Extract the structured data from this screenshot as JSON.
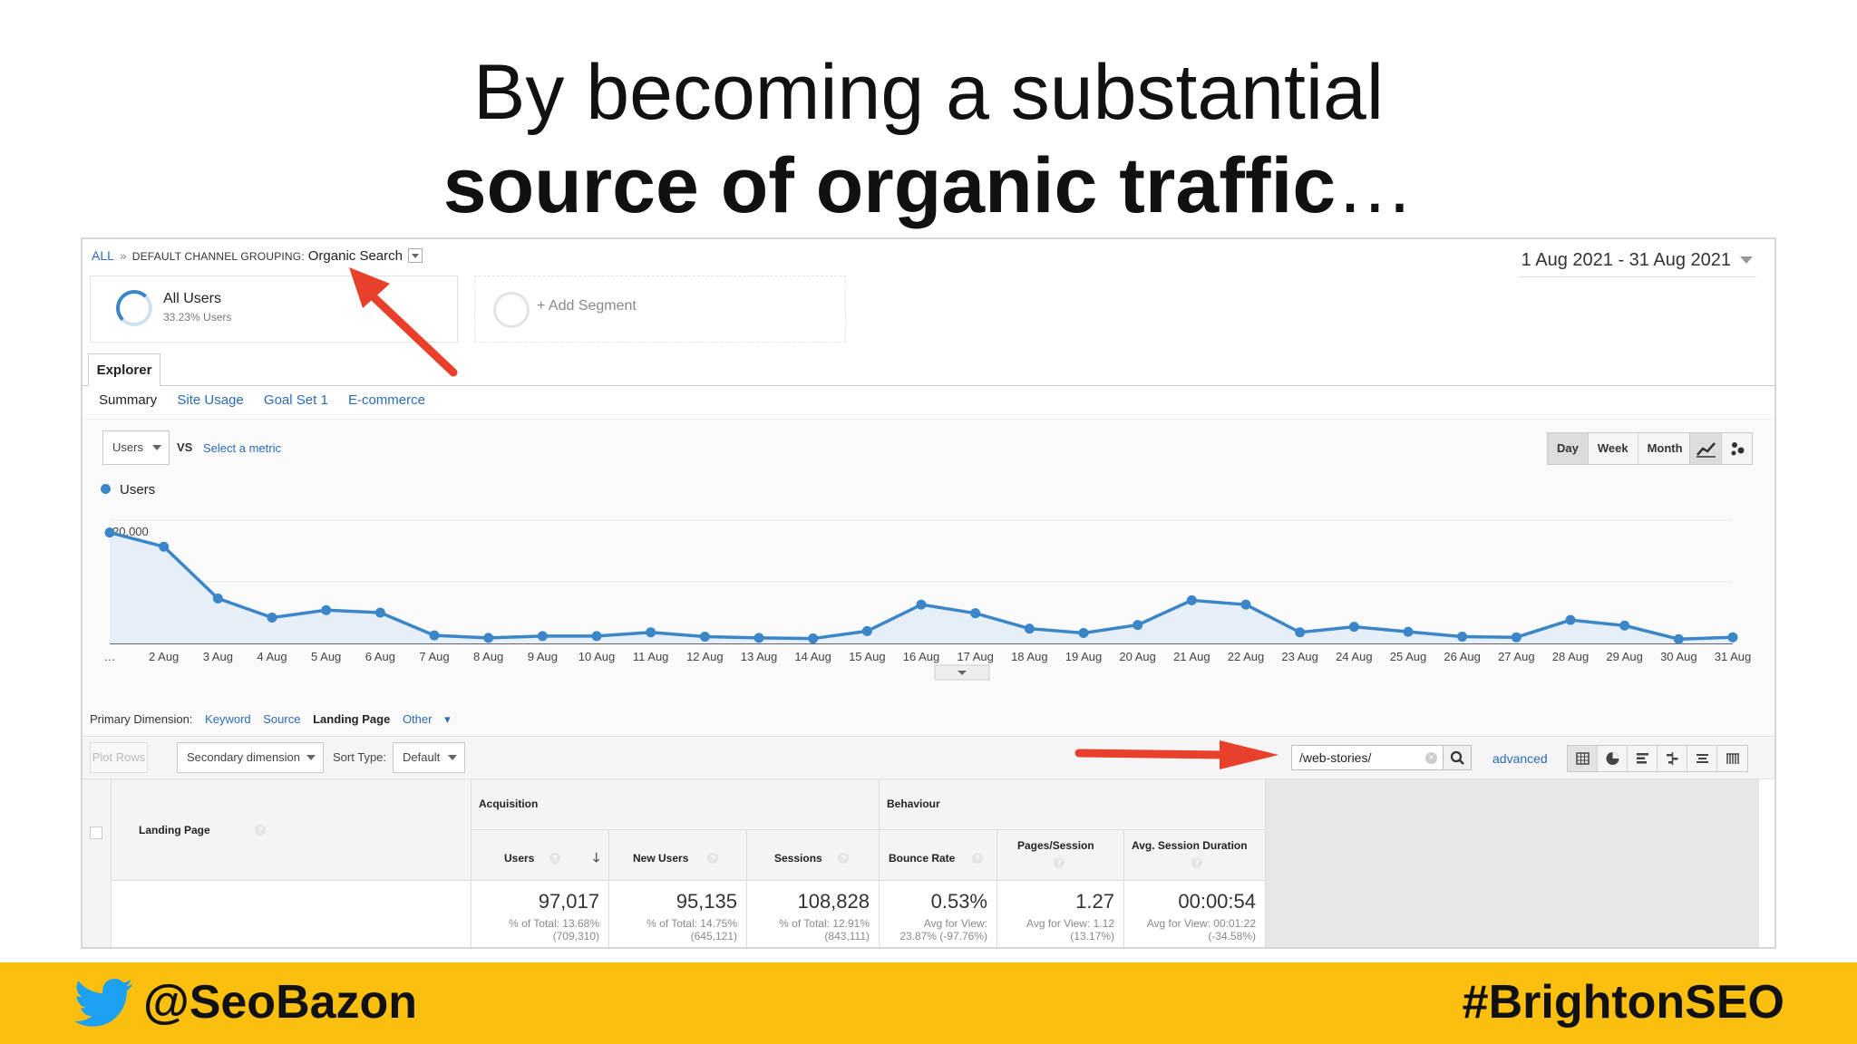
{
  "slide": {
    "title_line1": "By becoming a substantial",
    "title_line2_bold": "source of organic traffic",
    "title_line2_suffix": "…",
    "footer_handle": "@SeoBazon",
    "footer_hashtag": "#BrightonSEO",
    "twitter_icon": "twitter-bird-icon",
    "footer_color": "#fbbf0f"
  },
  "analytics": {
    "breadcrumb": {
      "all": "ALL",
      "separator": "»",
      "grouping_label": "DEFAULT CHANNEL GROUPING:",
      "grouping_value": "Organic Search"
    },
    "date_range": "1 Aug 2021 - 31 Aug 2021",
    "segments": [
      {
        "name": "All Users",
        "sub": "33.23% Users"
      },
      {
        "name": "+ Add Segment"
      }
    ],
    "explorer_tab": "Explorer",
    "subtabs": [
      "Summary",
      "Site Usage",
      "Goal Set 1",
      "E-commerce"
    ],
    "metric_select": "Users",
    "vs": "VS",
    "select_metric": "Select a metric",
    "periods": [
      "Day",
      "Week",
      "Month"
    ],
    "active_period": "Day",
    "chart_type_icons": [
      "line-chart-icon",
      "motion-chart-icon"
    ],
    "primary_dimension": {
      "label": "Primary Dimension:",
      "options": [
        "Keyword",
        "Source",
        "Landing Page",
        "Other"
      ],
      "active": "Landing Page"
    },
    "toolbar": {
      "plot_rows": "Plot Rows",
      "secondary_dimension": "Secondary dimension",
      "sort_type_label": "Sort Type:",
      "sort_type_value": "Default",
      "filter_value": "/web-stories/",
      "advanced": "advanced",
      "view_icons": [
        "table-view-icon",
        "pie-view-icon",
        "bar-view-icon",
        "comparison-view-icon",
        "term-cloud-icon",
        "pivot-view-icon"
      ]
    },
    "table": {
      "groups": {
        "acquisition": "Acquisition",
        "behaviour": "Behaviour"
      },
      "columns": [
        "Landing Page",
        "Users",
        "New Users",
        "Sessions",
        "Bounce Rate",
        "Pages/Session",
        "Avg. Session Duration"
      ],
      "totals": [
        {
          "value": "97,017",
          "line1": "% of Total: 13.68%",
          "line2": "(709,310)"
        },
        {
          "value": "95,135",
          "line1": "% of Total: 14.75%",
          "line2": "(645,121)"
        },
        {
          "value": "108,828",
          "line1": "% of Total: 12.91%",
          "line2": "(843,111)"
        },
        {
          "value": "0.53%",
          "line1": "Avg for View:",
          "line2": "23.87% (-97.76%)"
        },
        {
          "value": "1.27",
          "line1": "Avg for View: 1.12",
          "line2": "(13.17%)"
        },
        {
          "value": "00:00:54",
          "line1": "Avg for View: 00:01:22",
          "line2": "(-34.58%)"
        }
      ]
    }
  },
  "chart_data": {
    "type": "line",
    "series": [
      {
        "name": "Users",
        "color": "#3a86c8",
        "values": [
          18000,
          15700,
          7300,
          4200,
          5400,
          5000,
          1300,
          900,
          1200,
          1200,
          1800,
          1100,
          900,
          800,
          2000,
          6300,
          4900,
          2400,
          1700,
          3000,
          7000,
          6300,
          1800,
          2700,
          1900,
          1100,
          1000,
          3800,
          2900,
          700,
          1000
        ]
      }
    ],
    "categories": [
      "…",
      "2 Aug",
      "3 Aug",
      "4 Aug",
      "5 Aug",
      "6 Aug",
      "7 Aug",
      "8 Aug",
      "9 Aug",
      "10 Aug",
      "11 Aug",
      "12 Aug",
      "13 Aug",
      "14 Aug",
      "15 Aug",
      "16 Aug",
      "17 Aug",
      "18 Aug",
      "19 Aug",
      "20 Aug",
      "21 Aug",
      "22 Aug",
      "23 Aug",
      "24 Aug",
      "25 Aug",
      "26 Aug",
      "27 Aug",
      "28 Aug",
      "29 Aug",
      "30 Aug",
      "31 Aug"
    ],
    "y_ticks": [
      "20,000",
      "10,000"
    ],
    "ylim": [
      0,
      20000
    ],
    "grid": true,
    "legend": "top-left"
  }
}
